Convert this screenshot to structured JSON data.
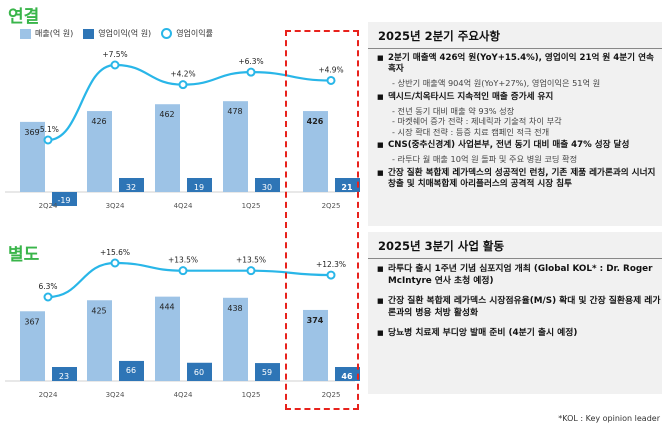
{
  "titles": {
    "top": "연결",
    "bottom": "별도"
  },
  "legend": {
    "sales": "매출(억 원)",
    "op": "영업이익(억 원)",
    "margin": "영업이익률"
  },
  "colors": {
    "sales": "#9dc3e6",
    "op": "#2e75b6",
    "margin": "#29b6e8",
    "highlight": "#e8221c",
    "title": "#39b54a"
  },
  "chart_data": [
    {
      "type": "bar",
      "title": "연결",
      "categories": [
        "2Q24",
        "3Q24",
        "4Q24",
        "1Q25",
        "2Q25"
      ],
      "series": [
        {
          "name": "매출(억 원)",
          "values": [
            369,
            426,
            462,
            478,
            426
          ]
        },
        {
          "name": "영업이익(억 원)",
          "values": [
            -19,
            32,
            19,
            30,
            21
          ]
        }
      ],
      "line": {
        "name": "영업이익률",
        "values": [
          -5.1,
          7.5,
          4.2,
          6.3,
          4.9
        ],
        "labels": [
          "-5.1%",
          "+7.5%",
          "+4.2%",
          "+6.3%",
          "+4.9%"
        ]
      }
    },
    {
      "type": "bar",
      "title": "별도",
      "categories": [
        "2Q24",
        "3Q24",
        "4Q24",
        "1Q25",
        "2Q25"
      ],
      "series": [
        {
          "name": "매출(억 원)",
          "values": [
            367,
            425,
            444,
            438,
            374
          ]
        },
        {
          "name": "영업이익(억 원)",
          "values": [
            23,
            66,
            60,
            59,
            46
          ]
        }
      ],
      "line": {
        "name": "영업이익률",
        "values": [
          6.3,
          15.6,
          13.5,
          13.5,
          12.3
        ],
        "labels": [
          "6.3%",
          "+15.6%",
          "+13.5%",
          "+13.5%",
          "+12.3%"
        ]
      }
    }
  ],
  "panel1": {
    "heading": "2025년 2분기 주요사항",
    "items": [
      {
        "text": "2분기 매출액 426억 원(YoY+15.4%), 영업이익 21억 원 4분기 연속 흑자",
        "subs": [
          "- 상반기 매출액 904억 원(YoY+27%), 영업이익은 51억 원"
        ]
      },
      {
        "text": "덱시드/치옥타시드 지속적인 매출 증가세 유지",
        "subs": [
          "- 전년 동기 대비 매출 약 93% 성장",
          "- 마켓쉐어 증가 전략 : 제네릭과 기술적 차이 부각",
          "- 시장 확대 전략 : 등증 치료 캠페인 적극 전개"
        ]
      },
      {
        "text": "CNS(중추신경계) 사업본부, 전년 동기 대비 매출 47% 성장 달성",
        "subs": [
          "- 라투다 월 매출 10억 원 돌파 및 주요 병원 코딩 확정"
        ]
      },
      {
        "text": "간장 질환 복합제 레가덱스의 성공적인 런칭, 기존 제품 레가론과의 시너지 창출 및 치매복합제 아리플러스의 공격적 시장 침투",
        "subs": []
      }
    ]
  },
  "panel2": {
    "heading": "2025년 3분기 사업 활동",
    "items": [
      {
        "text": "라투다 출시 1주년 기념 심포지엄 개최 (Global KOL* : Dr. Roger McIntyre 연사 초청 예정)"
      },
      {
        "text": "간장 질환 복합제 레가덱스 시장점유율(M/S) 확대 및 간장 질환용제 레가론과의 병용 처방 활성화"
      },
      {
        "text": "당뇨병 치료제 부디앙 발매 준비 (4분기 출시 예정)"
      }
    ]
  },
  "footnote": "*KOL : Key opinion leader"
}
